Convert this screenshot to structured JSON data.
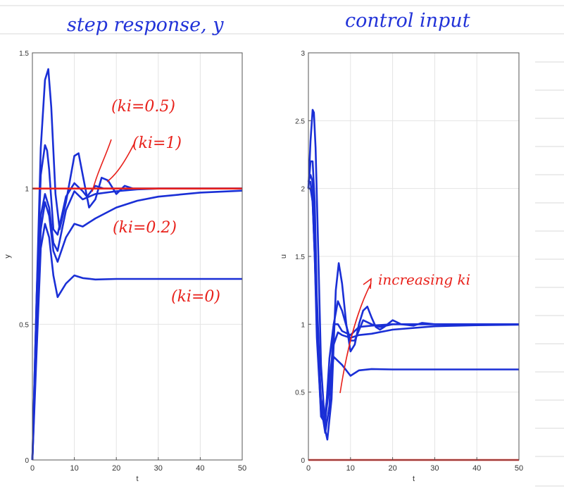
{
  "page": {
    "colors": {
      "paper_lines": "#d9d9d9",
      "curves": "#1a2fd6",
      "reference": "#e8211b",
      "handwriting_blue": "#2233d8",
      "handwriting_red": "#e8211b"
    },
    "titles": {
      "left": "step response, y",
      "right": "control input"
    }
  },
  "annotations": {
    "left": [
      "(ki=0.5)",
      "(ki=1)",
      "(ki=0.2)",
      "(ki=0)"
    ],
    "right": [
      "increasing ki"
    ]
  },
  "chart_data": [
    {
      "type": "line",
      "name": "step response",
      "xlabel": "t",
      "ylabel": "y",
      "xlim": [
        0,
        50
      ],
      "ylim": [
        0,
        1.5
      ],
      "xticks": [
        0,
        10,
        20,
        30,
        40,
        50
      ],
      "yticks": [
        0,
        0.5,
        1,
        1.5
      ],
      "ytick_labels": [
        "0",
        "0.5",
        "1",
        "1.5"
      ],
      "grid": true,
      "reference_line": {
        "y": 1,
        "color": "#e8211b"
      },
      "series": [
        {
          "x": [
            0,
            1,
            2,
            3,
            4,
            5,
            6,
            8,
            10,
            12,
            15,
            20,
            25,
            30,
            40,
            50
          ],
          "values": [
            0,
            0.4,
            0.78,
            0.87,
            0.82,
            0.68,
            0.6,
            0.65,
            0.68,
            0.67,
            0.665,
            0.667,
            0.667,
            0.667,
            0.667,
            0.667
          ]
        },
        {
          "x": [
            0,
            1,
            2,
            3,
            4,
            5,
            6,
            8,
            10,
            12,
            15,
            20,
            25,
            30,
            40,
            50
          ],
          "values": [
            0,
            0.45,
            0.85,
            0.95,
            0.9,
            0.77,
            0.73,
            0.82,
            0.87,
            0.86,
            0.89,
            0.93,
            0.955,
            0.97,
            0.985,
            0.992
          ]
        },
        {
          "x": [
            0,
            1,
            2,
            3,
            4,
            5,
            6,
            8,
            10,
            12,
            15,
            20,
            25,
            30,
            40,
            50
          ],
          "values": [
            0,
            0.5,
            0.9,
            0.98,
            0.93,
            0.8,
            0.77,
            0.92,
            0.99,
            0.96,
            0.98,
            0.99,
            0.997,
            1.0,
            1.0,
            1.0
          ]
        },
        {
          "x": [
            0,
            1,
            2,
            3,
            3.5,
            4,
            5,
            6,
            8,
            10,
            12,
            13,
            15,
            17,
            20,
            25,
            30,
            40,
            50
          ],
          "values": [
            0,
            0.6,
            1.05,
            1.16,
            1.14,
            1.07,
            0.85,
            0.83,
            0.97,
            1.02,
            0.99,
            0.97,
            1.01,
            1.0,
            1.0,
            1.0,
            1.0,
            1.0,
            1.0
          ]
        },
        {
          "x": [
            0,
            1,
            2,
            3,
            3.8,
            4.5,
            5.5,
            6.5,
            8,
            10,
            11,
            12,
            13.5,
            15,
            16.5,
            18,
            20,
            22,
            24,
            27,
            30,
            35,
            40,
            50
          ],
          "values": [
            0,
            0.6,
            1.15,
            1.4,
            1.44,
            1.3,
            0.98,
            0.85,
            0.95,
            1.12,
            1.13,
            1.05,
            0.93,
            0.96,
            1.04,
            1.03,
            0.98,
            1.01,
            1.0,
            1.0,
            1.0,
            1.0,
            1.0,
            1.0
          ]
        }
      ]
    },
    {
      "type": "line",
      "name": "control input",
      "xlabel": "t",
      "ylabel": "u",
      "xlim": [
        0,
        50
      ],
      "ylim": [
        0,
        3
      ],
      "xticks": [
        0,
        10,
        20,
        30,
        40,
        50
      ],
      "yticks": [
        0,
        0.5,
        1,
        1.5,
        2,
        2.5,
        3
      ],
      "ytick_labels": [
        "0",
        "0.5",
        "1",
        "1.5",
        "2",
        "2.5",
        "3"
      ],
      "grid": true,
      "reference_line": {
        "y": 0,
        "color": "#e8211b"
      },
      "series": [
        {
          "x": [
            0,
            0.5,
            1,
            1.5,
            2,
            3,
            4,
            5,
            6,
            8,
            10,
            12,
            15,
            20,
            30,
            40,
            50
          ],
          "values": [
            2.0,
            2.0,
            1.9,
            1.5,
            1.0,
            0.45,
            0.3,
            0.55,
            0.76,
            0.7,
            0.62,
            0.66,
            0.67,
            0.667,
            0.667,
            0.667,
            0.667
          ]
        },
        {
          "x": [
            0,
            0.5,
            1,
            1.5,
            2,
            3,
            4,
            5,
            6,
            7,
            8,
            10,
            12,
            15,
            20,
            30,
            40,
            50
          ],
          "values": [
            2.05,
            2.05,
            1.9,
            1.5,
            0.9,
            0.35,
            0.35,
            0.6,
            0.85,
            0.94,
            0.92,
            0.9,
            0.92,
            0.93,
            0.96,
            0.985,
            0.993,
            0.997
          ]
        },
        {
          "x": [
            0,
            0.5,
            1,
            1.5,
            2,
            3,
            4,
            5,
            6,
            7,
            8,
            10,
            12,
            15,
            20,
            30,
            40,
            50
          ],
          "values": [
            2.05,
            2.1,
            2.05,
            1.7,
            1.0,
            0.32,
            0.27,
            0.75,
            1.0,
            1.0,
            0.95,
            0.92,
            0.98,
            0.99,
            1.0,
            1.0,
            1.0,
            1.0
          ]
        },
        {
          "x": [
            0,
            0.5,
            1,
            1.5,
            2,
            3,
            4,
            5,
            6,
            7,
            8,
            10,
            11,
            13,
            15,
            17,
            20,
            30,
            40,
            50
          ],
          "values": [
            2.0,
            2.2,
            2.2,
            1.9,
            1.2,
            0.4,
            0.2,
            0.4,
            1.0,
            1.17,
            1.1,
            0.88,
            0.88,
            1.03,
            1.0,
            0.98,
            1.0,
            1.0,
            1.0,
            1.0
          ]
        },
        {
          "x": [
            0,
            0.5,
            1,
            1.3,
            1.7,
            2.2,
            3,
            4,
            4.5,
            5.5,
            6.5,
            7.2,
            8,
            9,
            10,
            11,
            12,
            13,
            14,
            15,
            16,
            17,
            18,
            20,
            22,
            25,
            27,
            30,
            35,
            40,
            50
          ],
          "values": [
            2.0,
            2.35,
            2.58,
            2.56,
            2.3,
            1.7,
            0.7,
            0.22,
            0.15,
            0.45,
            1.25,
            1.45,
            1.3,
            1.0,
            0.8,
            0.85,
            1.0,
            1.1,
            1.13,
            1.05,
            0.98,
            0.96,
            0.98,
            1.03,
            1.0,
            0.99,
            1.01,
            1.0,
            1.0,
            1.0,
            1.0
          ]
        }
      ]
    }
  ]
}
